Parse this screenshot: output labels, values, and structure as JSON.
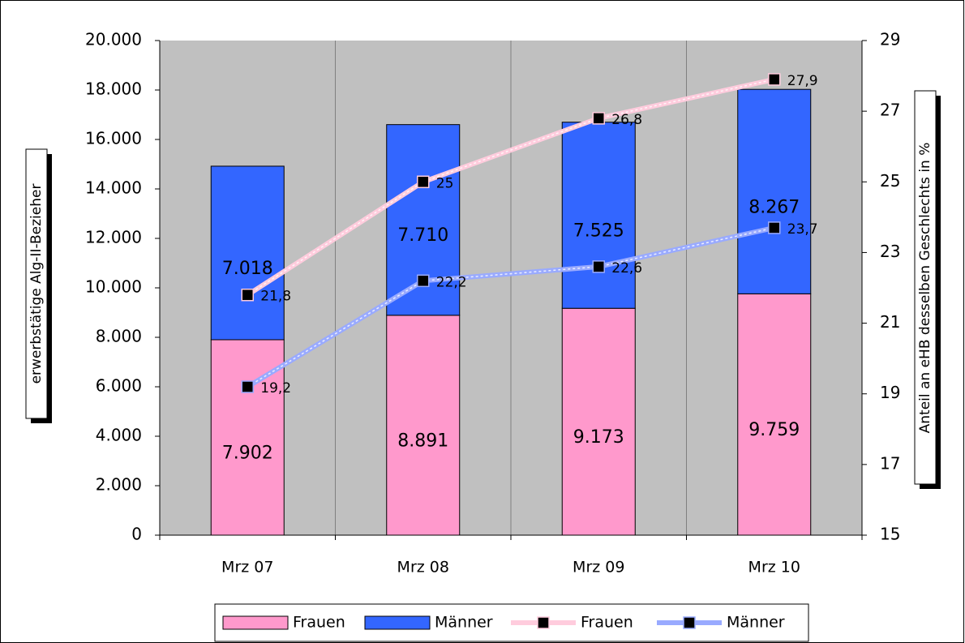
{
  "chart_data": {
    "type": "bar",
    "stacked": true,
    "categories": [
      "Mrz 07",
      "Mrz 08",
      "Mrz 09",
      "Mrz 10"
    ],
    "y_label": "erwerbstätige Alg-II-Bezieher",
    "y2_label": "Anteil an eHB desselben Geschlechts in %",
    "ylim": [
      0,
      20000
    ],
    "yticks": [
      0,
      {
        "value": 2000,
        "label": "2.000"
      },
      {
        "value": 4000,
        "label": "4.000"
      },
      {
        "value": 6000,
        "label": "6.000"
      },
      {
        "value": 8000,
        "label": "8.000"
      },
      {
        "value": 10000,
        "label": "10.000"
      },
      {
        "value": 12000,
        "label": "12.000"
      },
      {
        "value": 14000,
        "label": "14.000"
      },
      {
        "value": 16000,
        "label": "16.000"
      },
      {
        "value": 18000,
        "label": "18.000"
      },
      {
        "value": 20000,
        "label": "20.000"
      }
    ],
    "y2lim": [
      15,
      29
    ],
    "y2ticks": [
      15,
      17,
      19,
      21,
      23,
      25,
      27,
      29
    ],
    "series": [
      {
        "name": "Frauen",
        "type": "bar",
        "color": "#ff99cc",
        "values": [
          7902,
          8891,
          9173,
          9759
        ],
        "value_labels": [
          "7.902",
          "8.891",
          "9.173",
          "9.759"
        ]
      },
      {
        "name": "Männer",
        "type": "bar",
        "color": "#3366ff",
        "values": [
          7018,
          7710,
          7525,
          8267
        ],
        "value_labels": [
          "7.018",
          "7.710",
          "7.525",
          "8.267"
        ]
      },
      {
        "name": "Frauen",
        "type": "line",
        "axis": "y2",
        "color": "#ffccdd",
        "values": [
          21.8,
          25,
          26.8,
          27.9
        ],
        "value_labels": [
          "21,8",
          "25",
          "26,8",
          "27,9"
        ]
      },
      {
        "name": "Männer",
        "type": "line",
        "axis": "y2",
        "color": "#99aaff",
        "values": [
          19.2,
          22.2,
          22.6,
          23.7
        ],
        "value_labels": [
          "19,2",
          "22,2",
          "22,6",
          "23,7"
        ]
      }
    ]
  }
}
